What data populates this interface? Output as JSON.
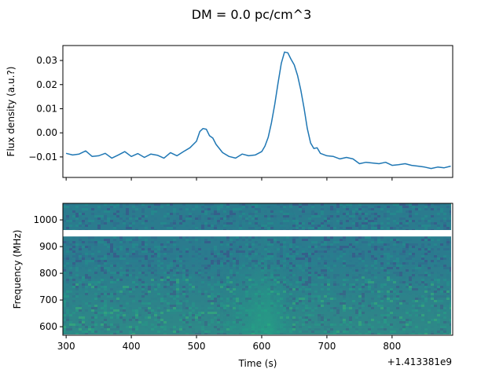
{
  "chart_data": [
    {
      "type": "line",
      "title": "DM = 0.0 pc/cm^3",
      "ylabel": "Flux density (a.u.?)",
      "xlim": [
        295,
        893
      ],
      "ylim": [
        -0.0185,
        0.0362
      ],
      "yticks": [
        -0.01,
        0.0,
        0.01,
        0.02,
        0.03
      ],
      "ytick_labels": [
        "−0.01",
        "0.00",
        "0.01",
        "0.02",
        "0.03"
      ],
      "xticks": [
        300,
        400,
        500,
        600,
        700,
        800
      ],
      "x_tick_labels_visible": false,
      "color": "#1f77b4",
      "x": [
        300,
        310,
        320,
        330,
        340,
        350,
        360,
        370,
        380,
        390,
        400,
        410,
        420,
        430,
        440,
        450,
        460,
        470,
        480,
        490,
        500,
        505,
        510,
        515,
        520,
        525,
        530,
        540,
        550,
        560,
        570,
        580,
        590,
        600,
        605,
        610,
        615,
        620,
        625,
        630,
        635,
        640,
        645,
        650,
        655,
        660,
        665,
        670,
        675,
        680,
        685,
        690,
        700,
        710,
        720,
        730,
        740,
        750,
        760,
        770,
        780,
        790,
        800,
        810,
        820,
        830,
        840,
        850,
        860,
        870,
        880,
        890
      ],
      "y": [
        -0.0085,
        -0.0092,
        -0.0088,
        -0.0075,
        -0.0098,
        -0.0095,
        -0.0085,
        -0.0105,
        -0.0092,
        -0.0078,
        -0.0098,
        -0.0086,
        -0.0102,
        -0.0088,
        -0.0093,
        -0.0105,
        -0.0082,
        -0.0095,
        -0.0078,
        -0.0062,
        -0.0035,
        0.0005,
        0.0018,
        0.0015,
        -0.0012,
        -0.0022,
        -0.0048,
        -0.0082,
        -0.0098,
        -0.0105,
        -0.0088,
        -0.0095,
        -0.0092,
        -0.0078,
        -0.0055,
        -0.0018,
        0.0042,
        0.0118,
        0.0205,
        0.0288,
        0.0335,
        0.0332,
        0.0305,
        0.0282,
        0.0238,
        0.0178,
        0.0102,
        0.0018,
        -0.0042,
        -0.0065,
        -0.0062,
        -0.0085,
        -0.0095,
        -0.0098,
        -0.0108,
        -0.0102,
        -0.0108,
        -0.0128,
        -0.0122,
        -0.0125,
        -0.0128,
        -0.0122,
        -0.0135,
        -0.0132,
        -0.0128,
        -0.0135,
        -0.0138,
        -0.0142,
        -0.0148,
        -0.0142,
        -0.0145,
        -0.0138
      ]
    },
    {
      "type": "heatmap",
      "xlabel": "Time (s)",
      "ylabel": "Frequency (MHz)",
      "xlim": [
        295,
        893
      ],
      "ylim": [
        568,
        1062
      ],
      "xticks": [
        300,
        400,
        500,
        600,
        700,
        800
      ],
      "xtick_labels": [
        "300",
        "400",
        "500",
        "600",
        "700",
        "800"
      ],
      "yticks": [
        600,
        700,
        800,
        900,
        1000
      ],
      "ytick_labels": [
        "600",
        "700",
        "800",
        "900",
        "1000"
      ],
      "offset_label": "+1.413381e9",
      "masked_band_mhz": [
        938,
        962
      ],
      "colormap": "viridis"
    }
  ]
}
